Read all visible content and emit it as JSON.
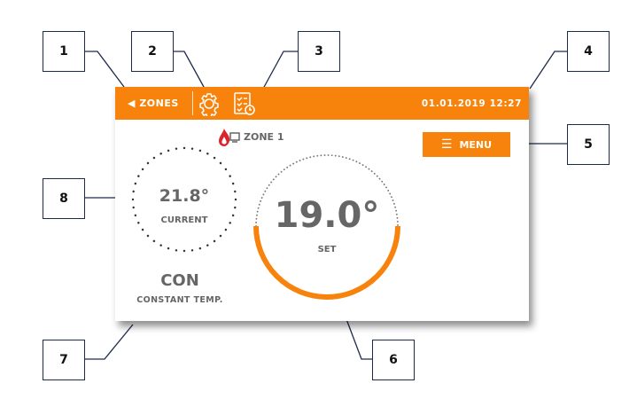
{
  "topbar": {
    "zones_label": "ZONES",
    "datetime": "01.01.2019  12:27"
  },
  "zone": {
    "name": "ZONE 1"
  },
  "menu": {
    "label": "MENU"
  },
  "current": {
    "value": "21.8°",
    "label": "CURRENT"
  },
  "setpoint": {
    "value": "19.0°",
    "label": "SET"
  },
  "mode": {
    "code": "CON",
    "label": "CONSTANT TEMP."
  },
  "callouts": [
    "1",
    "2",
    "3",
    "4",
    "5",
    "6",
    "7",
    "8"
  ],
  "colors": {
    "accent": "#f7830c",
    "text": "#666666",
    "flame": "#d8262c"
  }
}
